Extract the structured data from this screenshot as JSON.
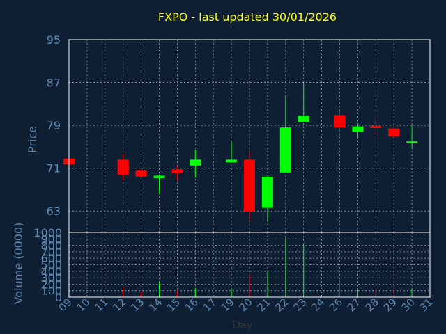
{
  "chart_data": [
    {
      "type": "candlestick",
      "title": "FXPO - last updated 30/01/2026",
      "ylabel": "Price",
      "ylim": [
        59,
        95
      ],
      "yticks": [
        63,
        71,
        79,
        87,
        95
      ],
      "grid": true,
      "x_categories": [
        "09",
        "10",
        "11",
        "12",
        "13",
        "14",
        "15",
        "16",
        "17",
        "19",
        "20",
        "21",
        "22",
        "23",
        "24",
        "26",
        "27",
        "28",
        "29",
        "30",
        "31"
      ],
      "candles": [
        {
          "x": "09",
          "open": 72.8,
          "high": 72.8,
          "low": 71.7,
          "close": 71.7
        },
        {
          "x": "12",
          "open": 72.6,
          "high": 73.6,
          "low": 68.8,
          "close": 69.8
        },
        {
          "x": "13",
          "open": 70.6,
          "high": 70.7,
          "low": 69.2,
          "close": 69.4
        },
        {
          "x": "14",
          "open": 69.1,
          "high": 69.8,
          "low": 66.2,
          "close": 69.6
        },
        {
          "x": "15",
          "open": 70.8,
          "high": 71.4,
          "low": 68.8,
          "close": 70.1
        },
        {
          "x": "16",
          "open": 71.5,
          "high": 74.4,
          "low": 69.3,
          "close": 72.6
        },
        {
          "x": "19",
          "open": 72.1,
          "high": 76.0,
          "low": 72.1,
          "close": 72.6
        },
        {
          "x": "20",
          "open": 72.6,
          "high": 74.1,
          "low": 61.2,
          "close": 63.0
        },
        {
          "x": "21",
          "open": 63.6,
          "high": 69.4,
          "low": 61.0,
          "close": 69.4
        },
        {
          "x": "22",
          "open": 70.2,
          "high": 84.3,
          "low": 70.2,
          "close": 78.6
        },
        {
          "x": "23",
          "open": 79.6,
          "high": 87.2,
          "low": 79.6,
          "close": 80.8
        },
        {
          "x": "26",
          "open": 80.9,
          "high": 81.9,
          "low": 77.6,
          "close": 78.6
        },
        {
          "x": "27",
          "open": 77.8,
          "high": 79.4,
          "low": 76.5,
          "close": 78.8
        },
        {
          "x": "28",
          "open": 78.9,
          "high": 80.4,
          "low": 77.3,
          "close": 78.5
        },
        {
          "x": "29",
          "open": 78.4,
          "high": 78.8,
          "low": 76.8,
          "close": 76.9
        },
        {
          "x": "30",
          "open": 75.9,
          "high": 79.1,
          "low": 74.7,
          "close": 76.0
        }
      ]
    },
    {
      "type": "bar",
      "xlabel": "Day",
      "ylabel": "Volume (0000)",
      "ylim": [
        0,
        1000
      ],
      "yticks": [
        0,
        100,
        200,
        300,
        400,
        500,
        600,
        700,
        800,
        900,
        1000
      ],
      "grid": true,
      "x_tick_labels": [
        "09",
        "10",
        "11",
        "12",
        "13",
        "14",
        "15",
        "16",
        "17",
        "19",
        "20",
        "21",
        "22",
        "23",
        "24",
        "26",
        "27",
        "28",
        "29",
        "30",
        "31"
      ],
      "bars": [
        {
          "x": "09",
          "value": 0,
          "direction": "down"
        },
        {
          "x": "12",
          "value": 155,
          "direction": "down"
        },
        {
          "x": "13",
          "value": 85,
          "direction": "down"
        },
        {
          "x": "14",
          "value": 230,
          "direction": "up"
        },
        {
          "x": "15",
          "value": 95,
          "direction": "down"
        },
        {
          "x": "16",
          "value": 140,
          "direction": "up"
        },
        {
          "x": "19",
          "value": 130,
          "direction": "up"
        },
        {
          "x": "20",
          "value": 355,
          "direction": "down"
        },
        {
          "x": "21",
          "value": 400,
          "direction": "up"
        },
        {
          "x": "22",
          "value": 920,
          "direction": "up"
        },
        {
          "x": "23",
          "value": 820,
          "direction": "up"
        },
        {
          "x": "26",
          "value": 265,
          "direction": "down"
        },
        {
          "x": "27",
          "value": 120,
          "direction": "up"
        },
        {
          "x": "28",
          "value": 145,
          "direction": "down"
        },
        {
          "x": "29",
          "value": 100,
          "direction": "down"
        },
        {
          "x": "30",
          "value": 125,
          "direction": "up"
        }
      ]
    }
  ],
  "colors": {
    "background": "#0f1f33",
    "plot_background": "#0f1f33",
    "up": "#00ff00",
    "down": "#ff0000",
    "title": "#ffff00",
    "axis_text": "#5e87b0",
    "frame": "#ffffff",
    "grid": "#9aa4ad"
  }
}
